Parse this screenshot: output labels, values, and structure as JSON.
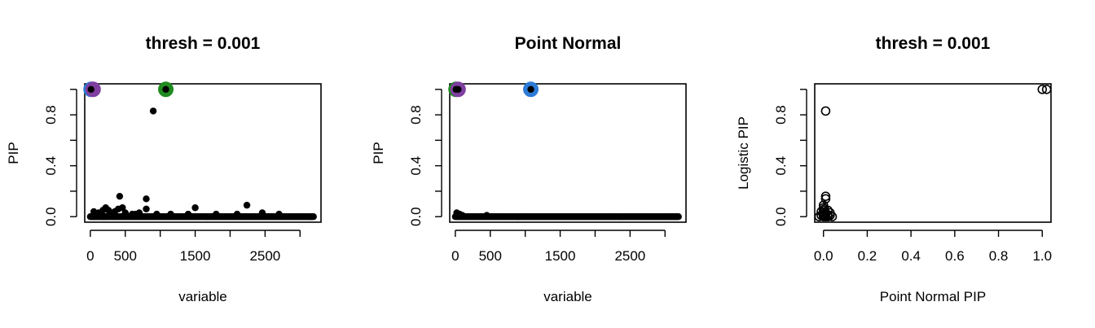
{
  "colors": {
    "points": "#000000",
    "cs_blue": "#2e7bd6",
    "cs_purple": "#7e3fa0",
    "cs_green": "#1f8a1f"
  },
  "chart_data": [
    {
      "type": "scatter",
      "title": "thresh =  0.001",
      "xlabel": "variable",
      "ylabel": "PIP",
      "xlim": [
        -80,
        3300
      ],
      "ylim": [
        0,
        1.0
      ],
      "xticks": [
        {
          "v": 0,
          "label": "0"
        },
        {
          "v": 500,
          "label": "500"
        },
        {
          "v": 1500,
          "label": "1500"
        },
        {
          "v": 2500,
          "label": "2500"
        }
      ],
      "xminor": [
        1000,
        2000,
        3000
      ],
      "yticks": [
        {
          "v": 0,
          "label": "0.0"
        },
        {
          "v": 0.4,
          "label": "0.4"
        },
        {
          "v": 0.8,
          "label": "0.8"
        }
      ],
      "yminor": [
        0.2,
        0.6,
        1.0
      ],
      "point_style": "filled",
      "points": [
        [
          10,
          1.0
        ],
        [
          1080,
          1.0
        ],
        [
          900,
          0.83
        ],
        [
          420,
          0.16
        ],
        [
          800,
          0.14
        ],
        [
          2240,
          0.09
        ],
        [
          1500,
          0.07
        ],
        [
          220,
          0.07
        ],
        [
          400,
          0.06
        ],
        [
          460,
          0.07
        ],
        [
          800,
          0.06
        ],
        [
          50,
          0.04
        ],
        [
          180,
          0.05
        ],
        [
          260,
          0.05
        ],
        [
          120,
          0.03
        ],
        [
          300,
          0.03
        ],
        [
          500,
          0.03
        ],
        [
          600,
          0.02
        ],
        [
          700,
          0.03
        ],
        [
          2460,
          0.03
        ],
        [
          1400,
          0.02
        ],
        [
          2700,
          0.02
        ],
        [
          350,
          0.04
        ],
        [
          650,
          0.02
        ],
        [
          950,
          0.02
        ],
        [
          1150,
          0.02
        ],
        [
          1800,
          0.02
        ],
        [
          2100,
          0.02
        ]
      ],
      "baseline": {
        "from": 0,
        "to": 3200,
        "step": 14,
        "value": 0
      },
      "highlights": [
        {
          "x": 10,
          "y": 1.0,
          "color": "#2e7bd6"
        },
        {
          "x": 40,
          "y": 1.0,
          "color": "#7e3fa0"
        },
        {
          "x": 1080,
          "y": 1.0,
          "color": "#1f8a1f"
        }
      ]
    },
    {
      "type": "scatter",
      "title": "Point Normal",
      "xlabel": "variable",
      "ylabel": "PIP",
      "xlim": [
        -80,
        3300
      ],
      "ylim": [
        0,
        1.0
      ],
      "xticks": [
        {
          "v": 0,
          "label": "0"
        },
        {
          "v": 500,
          "label": "500"
        },
        {
          "v": 1500,
          "label": "1500"
        },
        {
          "v": 2500,
          "label": "2500"
        }
      ],
      "xminor": [
        1000,
        2000,
        3000
      ],
      "yticks": [
        {
          "v": 0,
          "label": "0.0"
        },
        {
          "v": 0.4,
          "label": "0.4"
        },
        {
          "v": 0.8,
          "label": "0.8"
        }
      ],
      "yminor": [
        0.2,
        0.6,
        1.0
      ],
      "point_style": "filled",
      "points": [
        [
          10,
          1.0
        ],
        [
          40,
          1.0
        ],
        [
          1080,
          1.0
        ],
        [
          20,
          0.03
        ],
        [
          60,
          0.02
        ],
        [
          450,
          0.01
        ],
        [
          100,
          0.01
        ]
      ],
      "baseline": {
        "from": 0,
        "to": 3200,
        "step": 14,
        "value": 0
      },
      "highlights": [
        {
          "x": 10,
          "y": 1.0,
          "color": "#1f8a1f"
        },
        {
          "x": 40,
          "y": 1.0,
          "color": "#7e3fa0"
        },
        {
          "x": 1080,
          "y": 1.0,
          "color": "#2e7bd6"
        }
      ]
    },
    {
      "type": "scatter",
      "title": "thresh =  0.001",
      "xlabel": "Point Normal PIP",
      "ylabel": "Logistic PIP",
      "xlim": [
        -0.04,
        1.04
      ],
      "ylim": [
        0,
        1.0
      ],
      "xticks": [
        {
          "v": 0,
          "label": "0.0"
        },
        {
          "v": 0.2,
          "label": "0.2"
        },
        {
          "v": 0.4,
          "label": "0.4"
        },
        {
          "v": 0.6,
          "label": "0.6"
        },
        {
          "v": 0.8,
          "label": "0.8"
        },
        {
          "v": 1.0,
          "label": "1.0"
        }
      ],
      "xminor": [],
      "yticks": [
        {
          "v": 0,
          "label": "0.0"
        },
        {
          "v": 0.4,
          "label": "0.4"
        },
        {
          "v": 0.8,
          "label": "0.8"
        }
      ],
      "yminor": [
        0.2,
        0.6,
        1.0
      ],
      "point_style": "open",
      "points": [
        [
          1.0,
          1.0
        ],
        [
          1.02,
          1.0
        ],
        [
          0.01,
          0.83
        ],
        [
          0.01,
          0.16
        ],
        [
          0.01,
          0.14
        ],
        [
          0.0,
          0.09
        ],
        [
          0.0,
          0.07
        ],
        [
          0.0,
          0.05
        ],
        [
          0.02,
          0.05
        ],
        [
          -0.01,
          0.04
        ],
        [
          0.03,
          0.03
        ],
        [
          0.0,
          0.02
        ],
        [
          0.01,
          0.02
        ],
        [
          0.02,
          0.01
        ],
        [
          -0.01,
          0.01
        ],
        [
          0.0,
          0.0
        ],
        [
          0.01,
          0.0
        ],
        [
          0.02,
          0.0
        ],
        [
          0.03,
          0.01
        ],
        [
          -0.02,
          0.0
        ],
        [
          0.04,
          0.0
        ],
        [
          0.0,
          0.01
        ],
        [
          0.01,
          0.03
        ],
        [
          0.005,
          0.06
        ]
      ],
      "highlights": []
    }
  ]
}
